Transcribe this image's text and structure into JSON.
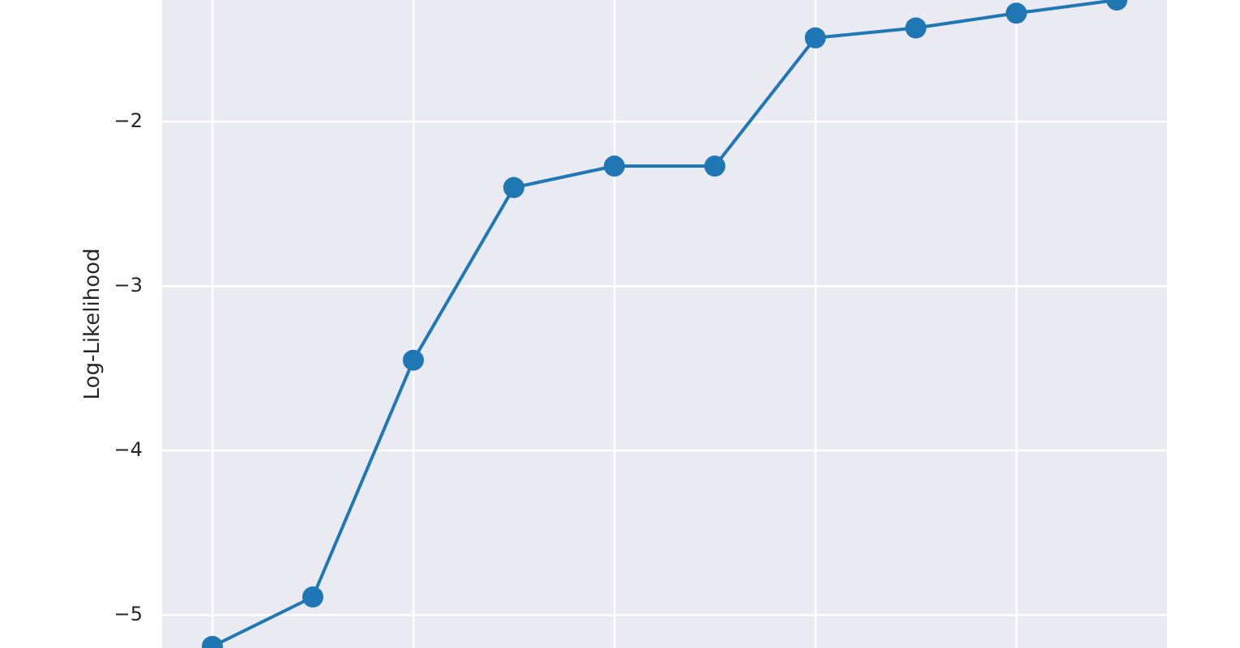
{
  "chart_data": {
    "type": "line",
    "ylabel": "Log-Likelihood",
    "categories": [
      null,
      null,
      null,
      null,
      null,
      null,
      null,
      null,
      null,
      null
    ],
    "series": [
      {
        "color": "#1f77b4",
        "values": [
          -5.19,
          -4.89,
          -3.45,
          -2.4,
          -2.27,
          -2.27,
          -1.49,
          -1.43,
          -1.34,
          -1.26
        ]
      }
    ],
    "ylim": [
      -5.2,
      -1.26
    ],
    "yticks": [
      {
        "value": -5,
        "label": "−5"
      },
      {
        "value": -4,
        "label": "−4"
      },
      {
        "value": -3,
        "label": "−3"
      },
      {
        "value": -2,
        "label": "−2"
      }
    ],
    "tick_labels": "y",
    "grid": true,
    "marker": "circle",
    "line_style": "solid"
  }
}
